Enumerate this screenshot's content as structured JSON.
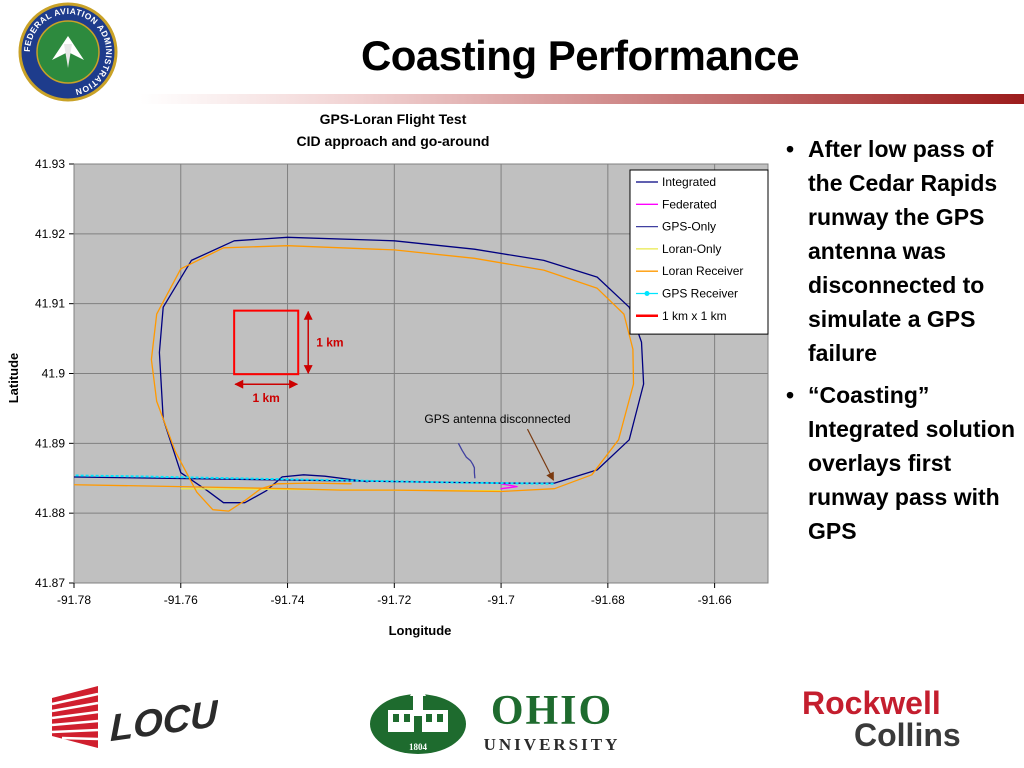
{
  "slide": {
    "title": "Coasting Performance",
    "bullets": [
      "After low pass of the Cedar Rapids runway the GPS antenna was disconnected to simulate a GPS failure",
      "“Coasting” Integrated solution overlays first runway pass with GPS"
    ]
  },
  "logos": {
    "faa_text": "FEDERAL AVIATION ADMINISTRATION",
    "locus_text": "LOCUS",
    "ohio_text": "OHIO",
    "ohio_sub": "UNIVERSITY",
    "ohio_year": "1804",
    "rockwell_line1": "Rockwell",
    "rockwell_line2": "Collins"
  },
  "chart_data": {
    "type": "line",
    "title": "GPS-Loran Flight Test",
    "subtitle": "CID approach and go-around",
    "xlabel": "Longitude",
    "ylabel": "Latitude",
    "xlim": [
      -91.78,
      -91.65
    ],
    "ylim": [
      41.87,
      41.93
    ],
    "xticks": [
      "-91.78",
      "-91.76",
      "-91.74",
      "-91.72",
      "-91.7",
      "-91.68",
      "-91.66"
    ],
    "yticks": [
      "41.93",
      "41.92",
      "41.91",
      "41.9",
      "41.89",
      "41.88",
      "41.87"
    ],
    "grid": true,
    "legend_position": "top-right",
    "plot_background": "#c0c0c0",
    "series": [
      {
        "name": "Integrated",
        "color": "#000080",
        "x": [
          -91.79,
          -91.7,
          -91.69,
          -91.682,
          -91.676,
          -91.6733,
          -91.6737,
          -91.676,
          -91.682,
          -91.692,
          -91.705,
          -91.72,
          -91.74,
          -91.75,
          -91.758,
          -91.7633,
          -91.764,
          -91.7633,
          -91.76,
          -91.755,
          -91.752,
          -91.748,
          -91.744,
          -91.741,
          -91.737,
          -91.733,
          -91.728,
          -91.725
        ],
        "y": [
          41.8853,
          41.8843,
          41.8843,
          41.8862,
          41.8905,
          41.8985,
          41.9045,
          41.9095,
          41.9138,
          41.9162,
          41.9178,
          41.919,
          41.9195,
          41.919,
          41.9162,
          41.9095,
          41.903,
          41.8935,
          41.8858,
          41.8832,
          41.8815,
          41.8815,
          41.8832,
          41.8852,
          41.8855,
          41.8853,
          41.8848,
          41.8845
        ]
      },
      {
        "name": "Federated",
        "color": "#ff00ff",
        "x": [
          -91.7,
          -91.697,
          -91.7,
          -91.697
        ],
        "y": [
          41.8842,
          41.8838,
          41.8835,
          41.8838
        ]
      },
      {
        "name": "GPS-Only",
        "color": "#4040a0",
        "x": [
          -91.708,
          -91.7073,
          -91.7065,
          -91.7057,
          -91.7053,
          -91.705,
          -91.705,
          -91.7049
        ],
        "y": [
          41.89,
          41.889,
          41.888,
          41.8875,
          41.887,
          41.8865,
          41.8858,
          41.885
        ]
      },
      {
        "name": "Loran-Only",
        "color": "#e8e84a",
        "x": [
          -91.76,
          -91.72,
          -91.7
        ],
        "y": [
          41.8835,
          41.8833,
          41.8832
        ]
      },
      {
        "name": "Loran Receiver",
        "color": "#ff9900",
        "x": [
          -91.79,
          -91.76,
          -91.74,
          -91.73,
          -91.72,
          -91.71,
          -91.7,
          -91.69,
          -91.683,
          -91.678,
          -91.6752,
          -91.6753,
          -91.677,
          -91.682,
          -91.692,
          -91.705,
          -91.72,
          -91.74,
          -91.752,
          -91.76,
          -91.7645,
          -91.7655,
          -91.7645,
          -91.761,
          -91.757,
          -91.754,
          -91.751,
          -91.748,
          -91.745,
          -91.742,
          -91.736,
          -91.728
        ],
        "y": [
          41.8842,
          41.8838,
          41.8835,
          41.8833,
          41.8833,
          41.8832,
          41.8831,
          41.8835,
          41.8855,
          41.8905,
          41.8985,
          41.9035,
          41.9085,
          41.9122,
          41.9148,
          41.9165,
          41.9177,
          41.9183,
          41.918,
          41.915,
          41.9085,
          41.902,
          41.896,
          41.8888,
          41.883,
          41.8805,
          41.8803,
          41.8818,
          41.8835,
          41.8842,
          41.8843,
          41.8842
        ]
      },
      {
        "name": "GPS Receiver",
        "color": "#00e5ff",
        "x": [
          -91.79,
          -91.77,
          -91.75,
          -91.73,
          -91.71,
          -91.69
        ],
        "y": [
          41.8855,
          41.8853,
          41.885,
          41.8847,
          41.8844,
          41.8842
        ]
      }
    ],
    "scale_box": {
      "name": "1 km x 1 km",
      "color": "#ff0000",
      "x": [
        -91.75,
        -91.738
      ],
      "y": [
        41.8999,
        41.909
      ]
    },
    "annotations": {
      "km_vertical": "1 km",
      "km_horizontal": "1 km",
      "callout": "GPS antenna disconnected",
      "callout_target": {
        "x": -91.69,
        "y": 41.8843
      }
    }
  }
}
